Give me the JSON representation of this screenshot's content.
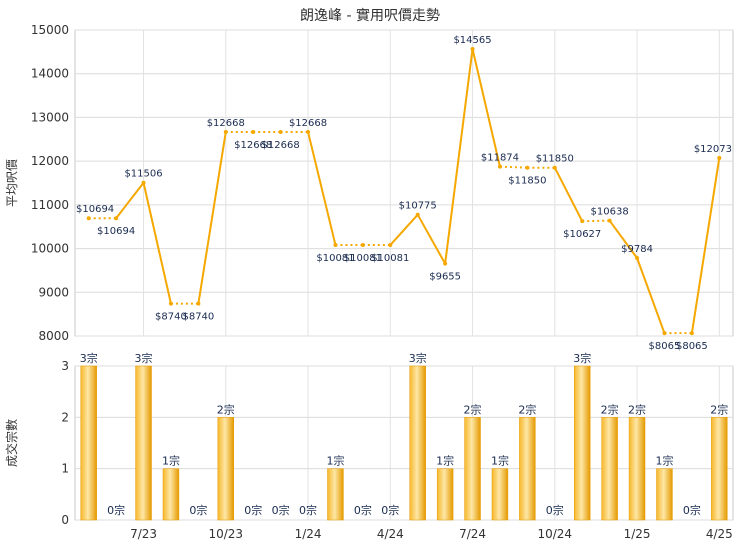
{
  "chart_data": [
    {
      "type": "line",
      "title": "朗逸峰 - 實用呎價走勢",
      "ylabel": "平均呎價",
      "ylim": [
        8000,
        15000
      ],
      "yticks": [
        8000,
        9000,
        10000,
        11000,
        12000,
        13000,
        14000,
        15000
      ],
      "grid": true,
      "line_color": "#f5a800",
      "label_prefix": "$",
      "values": [
        10694,
        10694,
        11506,
        8740,
        8740,
        12668,
        12668,
        12668,
        12668,
        10081,
        10081,
        10081,
        10775,
        9655,
        14565,
        11874,
        11850,
        11850,
        10627,
        10638,
        9784,
        8065,
        8065,
        12073
      ],
      "missing_segments": [
        [
          0,
          1
        ],
        [
          3,
          4
        ],
        [
          5,
          6
        ],
        [
          6,
          7
        ],
        [
          7,
          8
        ],
        [
          9,
          10
        ],
        [
          10,
          11
        ],
        [
          15,
          16
        ],
        [
          16,
          17
        ],
        [
          18,
          19
        ],
        [
          21,
          22
        ]
      ]
    },
    {
      "type": "bar",
      "ylabel": "成交宗數",
      "ylim": [
        0,
        3
      ],
      "yticks": [
        0,
        1,
        2,
        3
      ],
      "grid": true,
      "bar_color": "#f5a800",
      "label_suffix": "宗",
      "values": [
        3,
        0,
        3,
        1,
        0,
        2,
        0,
        0,
        0,
        1,
        0,
        0,
        3,
        1,
        2,
        1,
        2,
        0,
        3,
        2,
        2,
        1,
        0,
        2
      ],
      "x_tick_labels": [
        {
          "index": 2,
          "label": "7/23"
        },
        {
          "index": 5,
          "label": "10/23"
        },
        {
          "index": 8,
          "label": "1/24"
        },
        {
          "index": 11,
          "label": "4/24"
        },
        {
          "index": 14,
          "label": "7/24"
        },
        {
          "index": 17,
          "label": "10/24"
        },
        {
          "index": 20,
          "label": "1/25"
        },
        {
          "index": 23,
          "label": "4/25"
        }
      ]
    }
  ]
}
